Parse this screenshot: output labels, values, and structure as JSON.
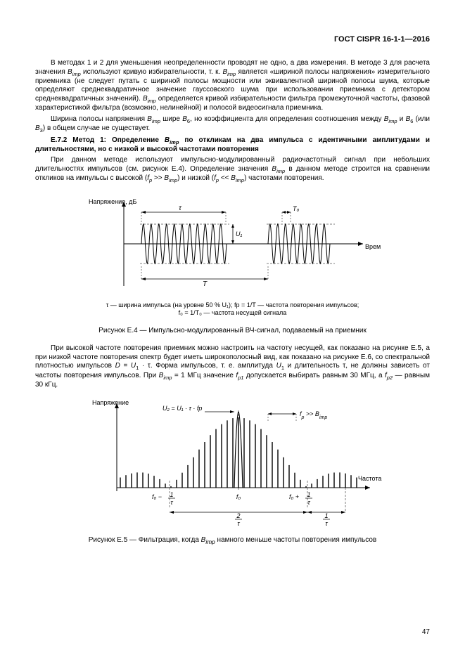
{
  "header": "ГОСТ CISPR 16-1-1—2016",
  "p1": "В методах 1 и 2 для уменьшения неопределенности проводят не одно, а два измерения. В методе 3 для расчета значения Bimp используют кривую избирательности, т. к. Bimp является «шириной полосы напряжения» измерительного приемника (не следует путать с шириной полосы мощности или эквивалентной шириной полосы шума, которые определяют среднеквадратичное значение гауссовского шума при использовании приемника с детектором среднеквадратичных значений). Bimp определяется кривой избирательности фильтра промежуточной частоты, фазовой характеристикой фильтра (возможно, нелинейной) и полосой видеосигнала приемника.",
  "p2": "Ширина полосы напряжения Bimp шире B6, но коэффициента для определения соотношения между Bimp и B6 (или B3) в общем случае не существует.",
  "method_title": "Е.7.2 Метод 1: Определение Bimp по откликам на два импульса с идентичными амплитудами и длительностями, но с низкой и высокой частотами повторения",
  "p3": "При данном методе используют импульсно-модулированный радиочастотный сигнал при небольших длительностях импульсов (см. рисунок Е.4). Определение значения Bimp в данном методе строится на сравнении откликов на импульсы с высокой (fp >> Bimp) и низкой (fp << Bimp) частотами повторения.",
  "fig1": {
    "ylabel": "Напряжение, дБ",
    "xlabel": "Время",
    "tau": "τ",
    "T0": "T₀",
    "U1": "U₁",
    "T": "T",
    "caption1": "τ — ширина импульса (на уровне 50 % U₁); fp = 1/T — частота повторения импульсов;",
    "caption2": "f₀ = 1/T₀ — частота несущей сигнала",
    "title": "Рисунок Е.4 — Импульсно-модулированный ВЧ-сигнал, подаваемый на приемник"
  },
  "p4": "При высокой частоте повторения приемник можно настроить на частоту несущей, как показано на рисунке Е.5, а при низкой частоте повторения спектр будет иметь широкополосный вид, как показано на рисунке Е.6, со спектральной плотностью импульсов D = U₁ · τ. Форма импульсов, т. е. амплитуда U₁ и длительность τ, не должны зависеть от частоты повторения импульсов. При Bimp = 1 МГц значение fp1 допускается выбирать равным 30 МГц, а fp2 — равным 30 кГц.",
  "fig2": {
    "ylabel": "Напряжение",
    "xlabel": "Частота",
    "formula": "U₂ = U₁ · τ · fp",
    "cond": "fp >> Bimp",
    "f0": "f₀",
    "f0minus": "f₀ − 1/τ",
    "f0plus": "f₀ + 1/τ",
    "twotau": "2/τ",
    "onetau": "1/τ",
    "title": "Рисунок Е.5 — Фильтрация, когда Bimp намного меньше частоты повторения импульсов"
  },
  "page_number": "47",
  "colors": {
    "stroke": "#000000",
    "bg": "#ffffff"
  }
}
